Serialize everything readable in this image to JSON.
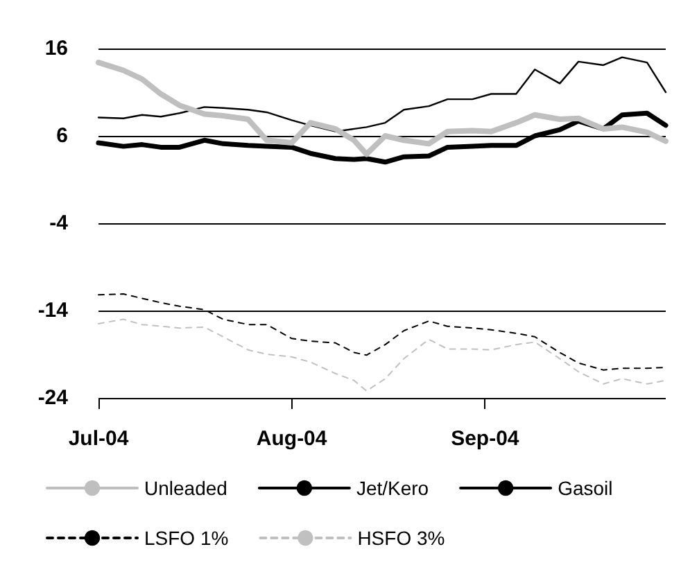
{
  "chart_data": {
    "type": "line",
    "x": [
      "2004-07-01",
      "2004-07-05",
      "2004-07-08",
      "2004-07-11",
      "2004-07-14",
      "2004-07-18",
      "2004-07-21",
      "2004-07-25",
      "2004-07-28",
      "2004-08-01",
      "2004-08-04",
      "2004-08-08",
      "2004-08-11",
      "2004-08-13",
      "2004-08-16",
      "2004-08-19",
      "2004-08-23",
      "2004-08-26",
      "2004-08-30",
      "2004-09-02",
      "2004-09-06",
      "2004-09-09",
      "2004-09-13",
      "2004-09-16",
      "2004-09-20",
      "2004-09-23",
      "2004-09-27",
      "2004-09-30"
    ],
    "series": [
      {
        "name": "Unleaded",
        "color": "#bfbfbf",
        "line_style": "solid",
        "values": [
          14.4,
          13.5,
          12.5,
          10.8,
          9.5,
          8.5,
          8.3,
          7.9,
          5.5,
          5.2,
          7.5,
          6.8,
          5.5,
          3.9,
          6.0,
          5.5,
          5.1,
          6.5,
          6.6,
          6.5,
          7.5,
          8.4,
          7.9,
          8.0,
          6.8,
          7.0,
          6.4,
          5.4
        ]
      },
      {
        "name": "Jet/Kero",
        "color": "#000000",
        "line_style": "solid",
        "values": [
          8.1,
          8.0,
          8.4,
          8.2,
          8.6,
          9.3,
          9.2,
          9.0,
          8.7,
          7.8,
          7.2,
          6.5,
          6.8,
          7.0,
          7.5,
          9.0,
          9.4,
          10.2,
          10.2,
          10.8,
          10.8,
          13.6,
          12.0,
          14.5,
          14.1,
          15.0,
          14.4,
          11.0
        ]
      },
      {
        "name": "Gasoil",
        "color": "#000000",
        "line_style": "solid",
        "values": [
          5.2,
          4.8,
          5.0,
          4.7,
          4.7,
          5.5,
          5.1,
          4.9,
          4.8,
          4.7,
          4.0,
          3.4,
          3.3,
          3.4,
          3.0,
          3.6,
          3.7,
          4.7,
          4.8,
          4.9,
          4.9,
          6.0,
          6.7,
          7.7,
          6.8,
          8.4,
          8.6,
          7.2
        ]
      },
      {
        "name": "LSFO 1%",
        "color": "#000000",
        "line_style": "dashed",
        "values": [
          -12.2,
          -12.1,
          -12.6,
          -13.1,
          -13.5,
          -13.9,
          -15.0,
          -15.6,
          -15.6,
          -17.2,
          -17.5,
          -17.7,
          -18.8,
          -19.1,
          -17.9,
          -16.3,
          -15.2,
          -15.8,
          -16.0,
          -16.2,
          -16.6,
          -17.0,
          -18.8,
          -20.0,
          -20.8,
          -20.6,
          -20.6,
          -20.5
        ]
      },
      {
        "name": "HSFO 3%",
        "color": "#c0c0c0",
        "line_style": "dashed",
        "values": [
          -15.5,
          -15.0,
          -15.6,
          -15.8,
          -16.0,
          -15.9,
          -17.0,
          -18.5,
          -19.0,
          -19.3,
          -19.9,
          -21.2,
          -22.0,
          -23.2,
          -21.8,
          -19.5,
          -17.3,
          -18.4,
          -18.4,
          -18.5,
          -17.9,
          -17.6,
          -19.5,
          -21.0,
          -22.4,
          -21.8,
          -22.4,
          -22.0
        ]
      }
    ],
    "xlim": [
      "2004-07-01",
      "2004-09-30"
    ],
    "xticks": [
      {
        "value": "2004-07-01",
        "label": "Jul-04"
      },
      {
        "value": "2004-08-01",
        "label": "Aug-04"
      },
      {
        "value": "2004-09-01",
        "label": "Sep-04"
      }
    ],
    "ylim": [
      -24,
      16
    ],
    "yticks": [
      -24,
      -14,
      -4,
      6,
      16
    ],
    "grid": "y",
    "legend": "bottom",
    "marker": "none"
  }
}
